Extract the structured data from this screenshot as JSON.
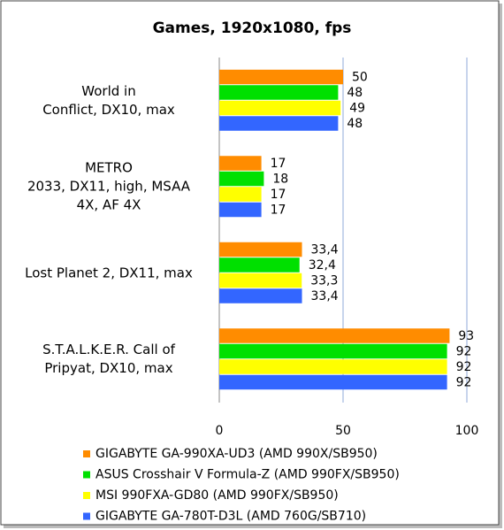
{
  "chart_data": {
    "type": "bar",
    "orientation": "horizontal",
    "title": "Games, 1920x1080, fps",
    "categories": [
      "World in\nConflict, DX10, max",
      "METRO\n2033, DX11, high, MSAA\n4X, AF 4X",
      "Lost Planet 2, DX11, max",
      "S.T.A.L.K.E.R.  Call of\nPripyat, DX10, max"
    ],
    "series": [
      {
        "name": "GIGABYTE GA-990XA-UD3 (AMD 990X/SB950)",
        "color": "#ff8c00",
        "values": [
          50,
          17,
          33.4,
          93
        ],
        "value_labels": [
          "50",
          "17",
          "33,4",
          "93"
        ]
      },
      {
        "name": "ASUS Crosshair V Formula-Z (AMD 990FX/SB950)",
        "color": "#00e000",
        "values": [
          48,
          18,
          32.4,
          92
        ],
        "value_labels": [
          "48",
          "18",
          "32,4",
          "92"
        ]
      },
      {
        "name": "MSI 990FXA-GD80 (AMD 990FX/SB950)",
        "color": "#ffff00",
        "values": [
          49,
          17,
          33.3,
          92
        ],
        "value_labels": [
          "49",
          "17",
          "33,3",
          "92"
        ]
      },
      {
        "name": "GIGABYTE GA-780T-D3L (AMD 760G/SB710)",
        "color": "#3366ff",
        "values": [
          48,
          17,
          33.4,
          92
        ],
        "value_labels": [
          "48",
          "17",
          "33,4",
          "92"
        ]
      }
    ],
    "xlim": [
      0,
      100
    ],
    "xticks": [
      0,
      50,
      100
    ],
    "grid": true,
    "legend": "bottom"
  }
}
